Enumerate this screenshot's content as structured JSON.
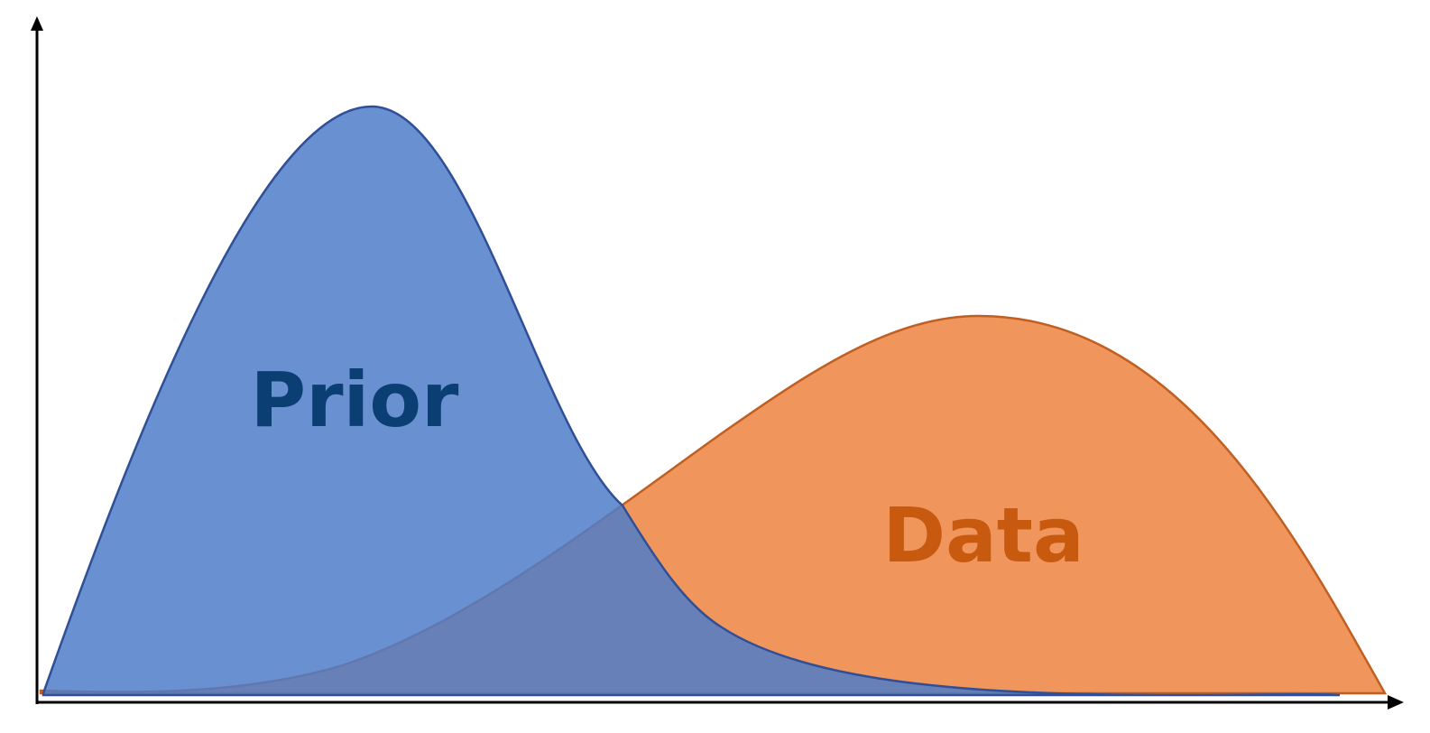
{
  "labels": {
    "prior": "Prior",
    "data": "Data"
  },
  "colors": {
    "prior_fill": "#4f7cc8",
    "prior_stroke": "#2f4f96",
    "prior_text": "#0b3f73",
    "data_fill": "#ef8c4d",
    "data_stroke": "#bf5f22",
    "data_text": "#c85a10",
    "axis": "#000000"
  }
}
